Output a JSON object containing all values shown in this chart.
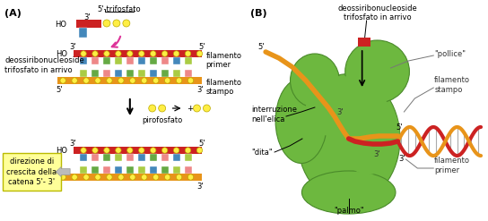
{
  "panel_A_label": "(A)",
  "panel_B_label": "(B)",
  "title_5prime_trifosfato": "5'-trifosfato",
  "label_deossi_left": "deossiribonucleoside\ntrifosfato in arrivo",
  "label_filamento_primer": "filamento\nprimer",
  "label_filamento_stampo": "filamento\nstampo",
  "label_pirofosfato": "pirofosfato",
  "label_direzione": "direzione di\ncrescita della\ncatena 5'- 3'",
  "label_deossi_right": "deossiribonucleoside\ntrifosfato in arrivo",
  "label_pollice": "\"pollice\"",
  "label_filamento_stampo_B": "filamento\nstampo",
  "label_interruzione": "interruzione\nnell'elica",
  "label_dita": "\"dita\"",
  "label_filamento_primer_B": "filamento\nprimer",
  "label_palmo": "\"palmo\"",
  "color_backbone": "#E8941A",
  "color_red_strand": "#CC2222",
  "color_bases_blue": "#4488BB",
  "color_bases_green": "#66AA44",
  "color_bases_pink": "#EE8888",
  "color_bases_yg": "#AACC44",
  "color_phosphate": "#FFEE44",
  "color_yellow_box": "#FFFF99",
  "color_yellow_box_border": "#CCCC00",
  "color_green_blob": "#6DB83F",
  "color_green_dark": "#4A8A2A",
  "color_green_mid": "#5BA030",
  "background_color": "#ffffff",
  "fs": 6.5
}
